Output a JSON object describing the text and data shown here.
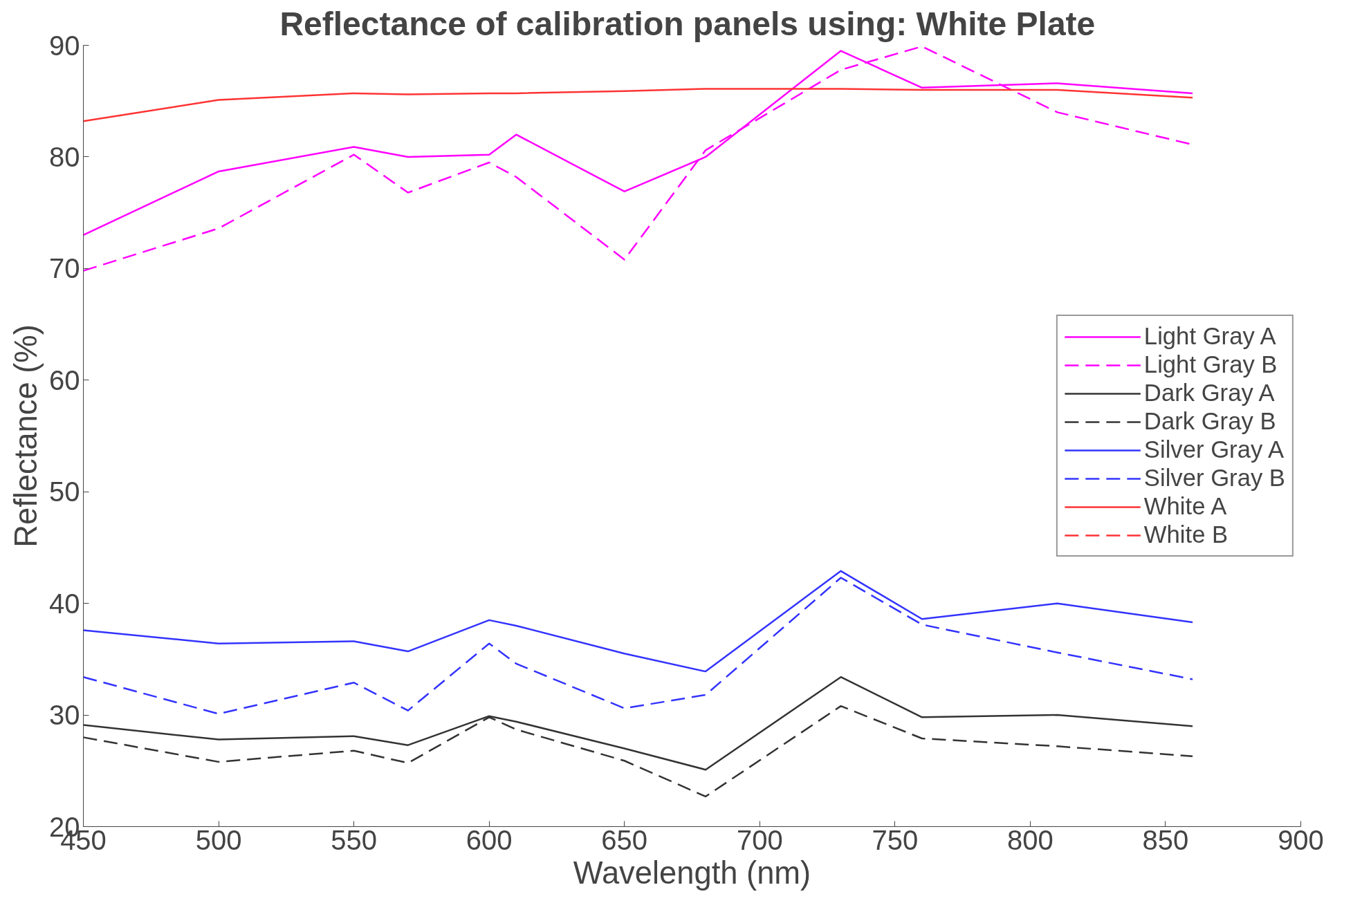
{
  "chart_data": {
    "type": "line",
    "title": "Reflectance of calibration panels using:  White Plate",
    "xlabel": "Wavelength (nm)",
    "ylabel": "Reflectance (%)",
    "x": [
      450,
      500,
      550,
      570,
      600,
      610,
      650,
      680,
      730,
      760,
      810,
      860
    ],
    "xlim": [
      450,
      900
    ],
    "xticks": [
      450,
      500,
      550,
      600,
      650,
      700,
      750,
      800,
      850,
      900
    ],
    "ylim": [
      20,
      90
    ],
    "yticks": [
      20,
      30,
      40,
      50,
      60,
      70,
      80,
      90
    ],
    "grid": false,
    "legend": "right",
    "marker": "none",
    "series": [
      {
        "name": "Light Gray A",
        "color": "#ff00ff",
        "line_style": "solid",
        "values": [
          73.0,
          78.7,
          80.9,
          80.0,
          80.2,
          82.0,
          76.9,
          80.0,
          89.5,
          86.2,
          86.6,
          85.7
        ]
      },
      {
        "name": "Light Gray B",
        "color": "#ff00ff",
        "line_style": "dashed",
        "values": [
          69.8,
          73.6,
          80.2,
          76.8,
          79.5,
          78.2,
          70.8,
          80.6,
          87.8,
          89.9,
          84.0,
          81.1
        ]
      },
      {
        "name": "Dark Gray A",
        "color": "#333333",
        "line_style": "solid",
        "values": [
          29.1,
          27.8,
          28.1,
          27.3,
          29.9,
          29.4,
          27.0,
          25.1,
          33.4,
          29.8,
          30.0,
          29.0
        ]
      },
      {
        "name": "Dark Gray B",
        "color": "#333333",
        "line_style": "dashed",
        "values": [
          28.0,
          25.8,
          26.8,
          25.7,
          29.8,
          28.7,
          25.9,
          22.7,
          30.8,
          27.9,
          27.2,
          26.3
        ]
      },
      {
        "name": "Silver Gray A",
        "color": "#3333ff",
        "line_style": "solid",
        "values": [
          37.6,
          36.4,
          36.6,
          35.7,
          38.5,
          38.0,
          35.5,
          33.9,
          42.9,
          38.6,
          40.0,
          38.3
        ]
      },
      {
        "name": "Silver Gray B",
        "color": "#3333ff",
        "line_style": "dashed",
        "values": [
          33.4,
          30.1,
          32.9,
          30.4,
          36.4,
          34.6,
          30.6,
          31.8,
          42.3,
          38.1,
          35.6,
          33.2
        ]
      },
      {
        "name": "White A",
        "color": "#ff3333",
        "line_style": "solid",
        "values": [
          83.2,
          85.1,
          85.7,
          85.6,
          85.7,
          85.7,
          85.9,
          86.1,
          86.1,
          86.0,
          86.0,
          85.3
        ]
      },
      {
        "name": "White B",
        "color": "#ff3333",
        "line_style": "dashed",
        "values": [
          null,
          null,
          null,
          null,
          null,
          null,
          null,
          null,
          null,
          null,
          null,
          null
        ]
      }
    ]
  }
}
